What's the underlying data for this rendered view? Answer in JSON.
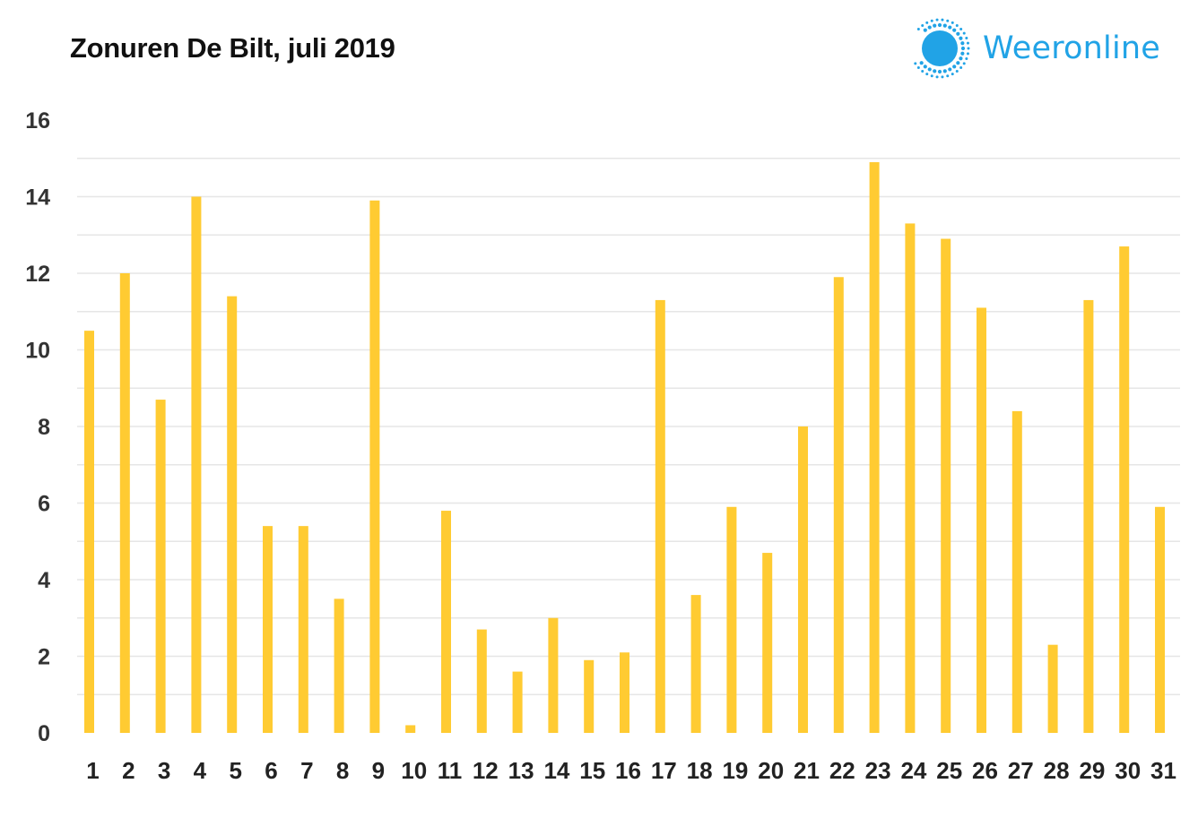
{
  "logo": {
    "icon": "sun-icon",
    "text": "Weeronline",
    "color": "#21a3e6"
  },
  "chart_data": {
    "type": "bar",
    "title": "Zonuren De Bilt, juli 2019",
    "xlabel": "",
    "ylabel": "",
    "categories": [
      "1",
      "2",
      "3",
      "4",
      "5",
      "6",
      "7",
      "8",
      "9",
      "10",
      "11",
      "12",
      "13",
      "14",
      "15",
      "16",
      "17",
      "18",
      "19",
      "20",
      "21",
      "22",
      "23",
      "24",
      "25",
      "26",
      "27",
      "28",
      "29",
      "30",
      "31"
    ],
    "values": [
      10.5,
      12.0,
      8.7,
      14.0,
      11.4,
      5.4,
      5.4,
      3.5,
      13.9,
      0.2,
      5.8,
      2.7,
      1.6,
      3.0,
      1.9,
      2.1,
      11.3,
      3.6,
      5.9,
      4.7,
      8.0,
      11.9,
      14.9,
      13.3,
      12.9,
      11.1,
      8.4,
      2.3,
      11.3,
      12.7,
      5.9
    ],
    "ylim": [
      0,
      16
    ],
    "yticks": [
      "0",
      "2",
      "4",
      "6",
      "8",
      "10",
      "12",
      "14",
      "16"
    ],
    "grid": true,
    "bar_color": "#ffcb32",
    "grid_color": "#e6e6e6"
  }
}
